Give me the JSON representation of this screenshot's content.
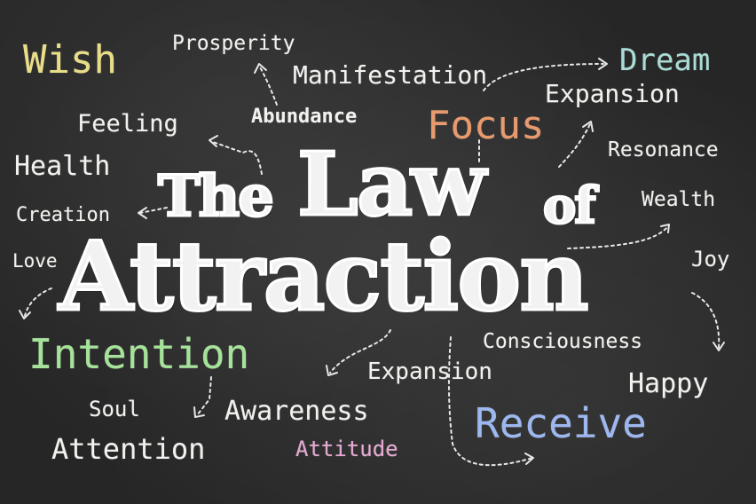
{
  "title": {
    "the": "The",
    "law": "Law",
    "of": "of",
    "attraction": "Attraction"
  },
  "words": {
    "wish": "Wish",
    "prosperity": "Prosperity",
    "manifestation": "Manifestation",
    "dream": "Dream",
    "expansion_top": "Expansion",
    "feeling": "Feeling",
    "abundance": "Abundance",
    "focus": "Focus",
    "resonance": "Resonance",
    "health": "Health",
    "creation": "Creation",
    "wealth": "Wealth",
    "love": "Love",
    "joy": "Joy",
    "intention": "Intention",
    "consciousness": "Consciousness",
    "expansion_bottom": "Expansion",
    "happy": "Happy",
    "soul": "Soul",
    "awareness": "Awareness",
    "receive": "Receive",
    "attention": "Attention",
    "attitude": "Attitude"
  },
  "colors": {
    "background": "#2a2a2a",
    "chalk_white": "#f1f1ee",
    "yellow": "#e9de86",
    "teal": "#a9dcd6",
    "orange": "#e99a6c",
    "green": "#a6e39a",
    "blue": "#9db7f0",
    "pink": "#e6a9d2"
  }
}
